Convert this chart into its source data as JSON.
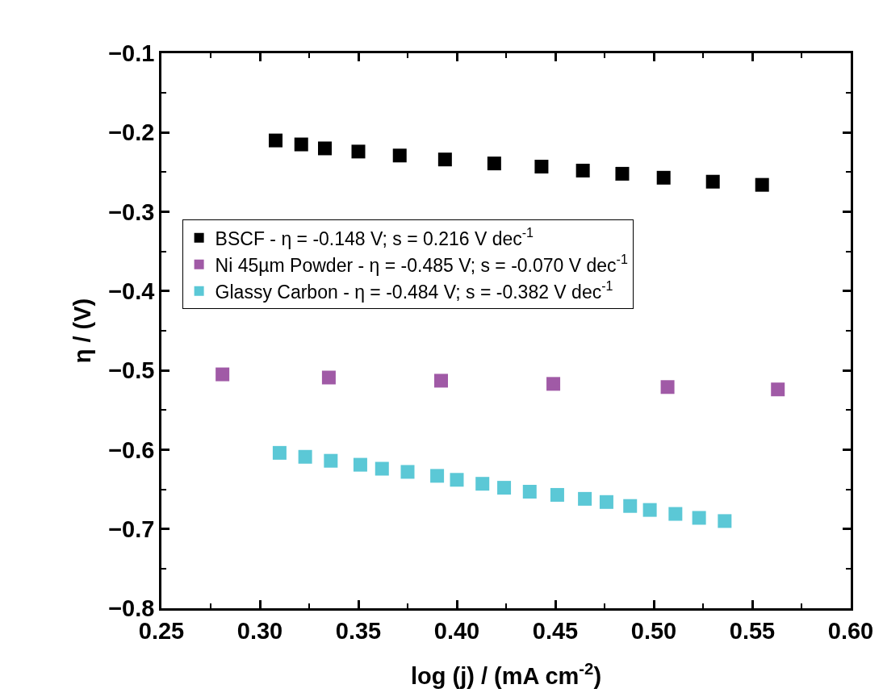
{
  "chart_data": {
    "type": "scatter",
    "xlabel": "log (j) / (mA cm$^{-2}$)",
    "ylabel": "η / (V)",
    "xlim": [
      0.25,
      0.6
    ],
    "ylim": [
      -0.8,
      -0.1
    ],
    "xticks": [
      {
        "value": 0.25,
        "label": "0.25"
      },
      {
        "value": 0.3,
        "label": "0.30"
      },
      {
        "value": 0.35,
        "label": "0.35"
      },
      {
        "value": 0.4,
        "label": "0.40"
      },
      {
        "value": 0.45,
        "label": "0.45"
      },
      {
        "value": 0.5,
        "label": "0.50"
      },
      {
        "value": 0.55,
        "label": "0.55"
      },
      {
        "value": 0.6,
        "label": "0.60"
      }
    ],
    "yticks": [
      {
        "value": -0.8,
        "label": "−0.8"
      },
      {
        "value": -0.7,
        "label": "−0.7"
      },
      {
        "value": -0.6,
        "label": "−0.6"
      },
      {
        "value": -0.5,
        "label": "−0.5"
      },
      {
        "value": -0.4,
        "label": "−0.4"
      },
      {
        "value": -0.3,
        "label": "−0.3"
      },
      {
        "value": -0.2,
        "label": "−0.2"
      },
      {
        "value": -0.1,
        "label": "−0.1"
      }
    ],
    "marker": "square",
    "legend": "top",
    "series": [
      {
        "name": "BSCF - η = -0.148 V; s = 0.216 V dec$^{-1}$",
        "color": "#000000",
        "x": [
          0.308,
          0.321,
          0.333,
          0.35,
          0.371,
          0.394,
          0.419,
          0.443,
          0.464,
          0.484,
          0.505,
          0.53,
          0.555
        ],
        "values": [
          -0.21,
          -0.215,
          -0.22,
          -0.224,
          -0.229,
          -0.234,
          -0.239,
          -0.243,
          -0.248,
          -0.252,
          -0.257,
          -0.262,
          -0.266
        ]
      },
      {
        "name": "Ni 45µm Powder - η = -0.485 V; s = -0.070 V dec$^{-1}$",
        "color": "#a05aa6",
        "x": [
          0.281,
          0.335,
          0.392,
          0.449,
          0.507,
          0.563
        ],
        "values": [
          -0.505,
          -0.509,
          -0.513,
          -0.517,
          -0.521,
          -0.524
        ]
      },
      {
        "name": "Glassy Carbon - η = -0.484 V; s = -0.382 V dec$^{-1}$",
        "color": "#5bc8d6",
        "x": [
          0.31,
          0.323,
          0.336,
          0.351,
          0.362,
          0.375,
          0.39,
          0.4,
          0.413,
          0.424,
          0.437,
          0.451,
          0.465,
          0.476,
          0.488,
          0.498,
          0.511,
          0.523,
          0.536
        ],
        "values": [
          -0.604,
          -0.609,
          -0.614,
          -0.619,
          -0.624,
          -0.628,
          -0.633,
          -0.638,
          -0.643,
          -0.648,
          -0.653,
          -0.657,
          -0.662,
          -0.666,
          -0.671,
          -0.676,
          -0.681,
          -0.686,
          -0.69
        ]
      }
    ]
  }
}
